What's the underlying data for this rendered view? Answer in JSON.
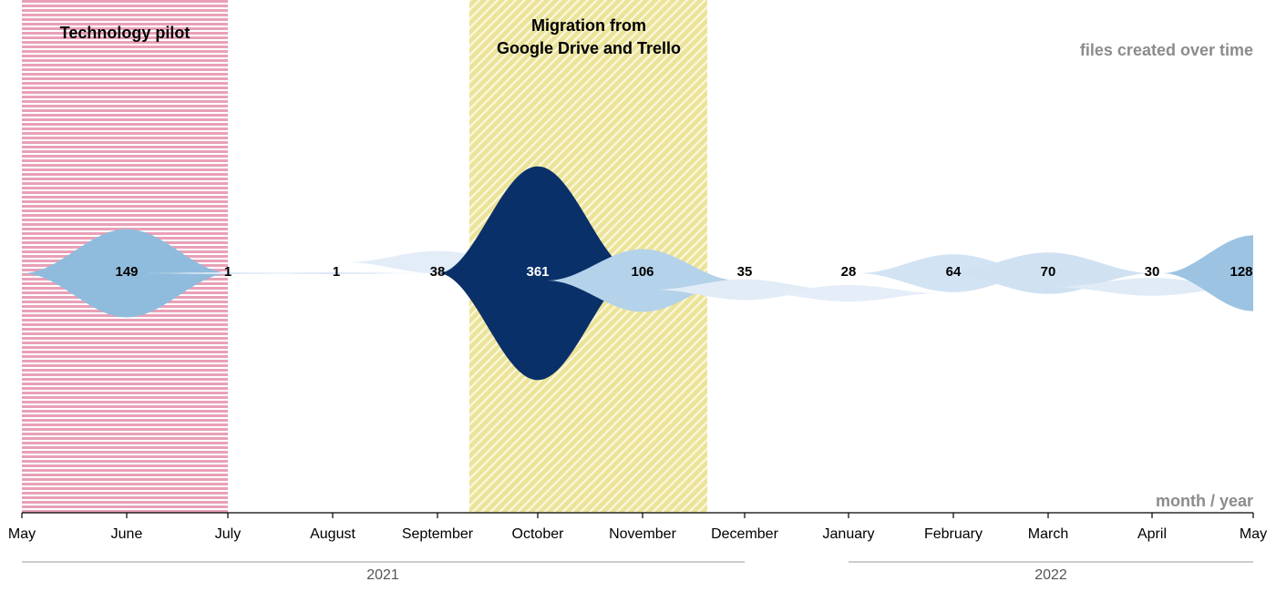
{
  "chart_data": {
    "type": "area",
    "subtype": "streamgraph",
    "title": "files created over time",
    "xlabel": "month / year",
    "x_ticks": [
      "May",
      "June",
      "July",
      "August",
      "September",
      "October",
      "November",
      "December",
      "January",
      "February",
      "March",
      "April",
      "May"
    ],
    "years": [
      {
        "label": "2021",
        "from": "May",
        "to": "December"
      },
      {
        "label": "2022",
        "from": "January",
        "to": "May"
      }
    ],
    "months": [
      "June",
      "July",
      "August",
      "September",
      "October",
      "November",
      "December",
      "January",
      "February",
      "March",
      "April",
      "May"
    ],
    "values": [
      149,
      1,
      1,
      38,
      361,
      106,
      35,
      28,
      64,
      70,
      30,
      128
    ],
    "colors": [
      "#8fbcdc",
      "#dde9f6",
      "#dde9f6",
      "#e2edf8",
      "#0a306a",
      "#b4d2ea",
      "#e1ecf7",
      "#e4edf8",
      "#d2e3f4",
      "#d0e1f2",
      "#e0ebf7",
      "#9cc3e2"
    ],
    "periods": [
      {
        "label": "Technology pilot",
        "from": "May",
        "to": "July",
        "pattern": "horizontal-stripes",
        "color": "#e9a0b7"
      },
      {
        "label_line1": "Migration from",
        "label_line2": "Google Drive and Trello",
        "from": "mid-September",
        "to": "mid-November",
        "pattern": "diagonal-stripes",
        "color": "#ebe39a"
      }
    ],
    "grid": false,
    "legend": "none"
  }
}
